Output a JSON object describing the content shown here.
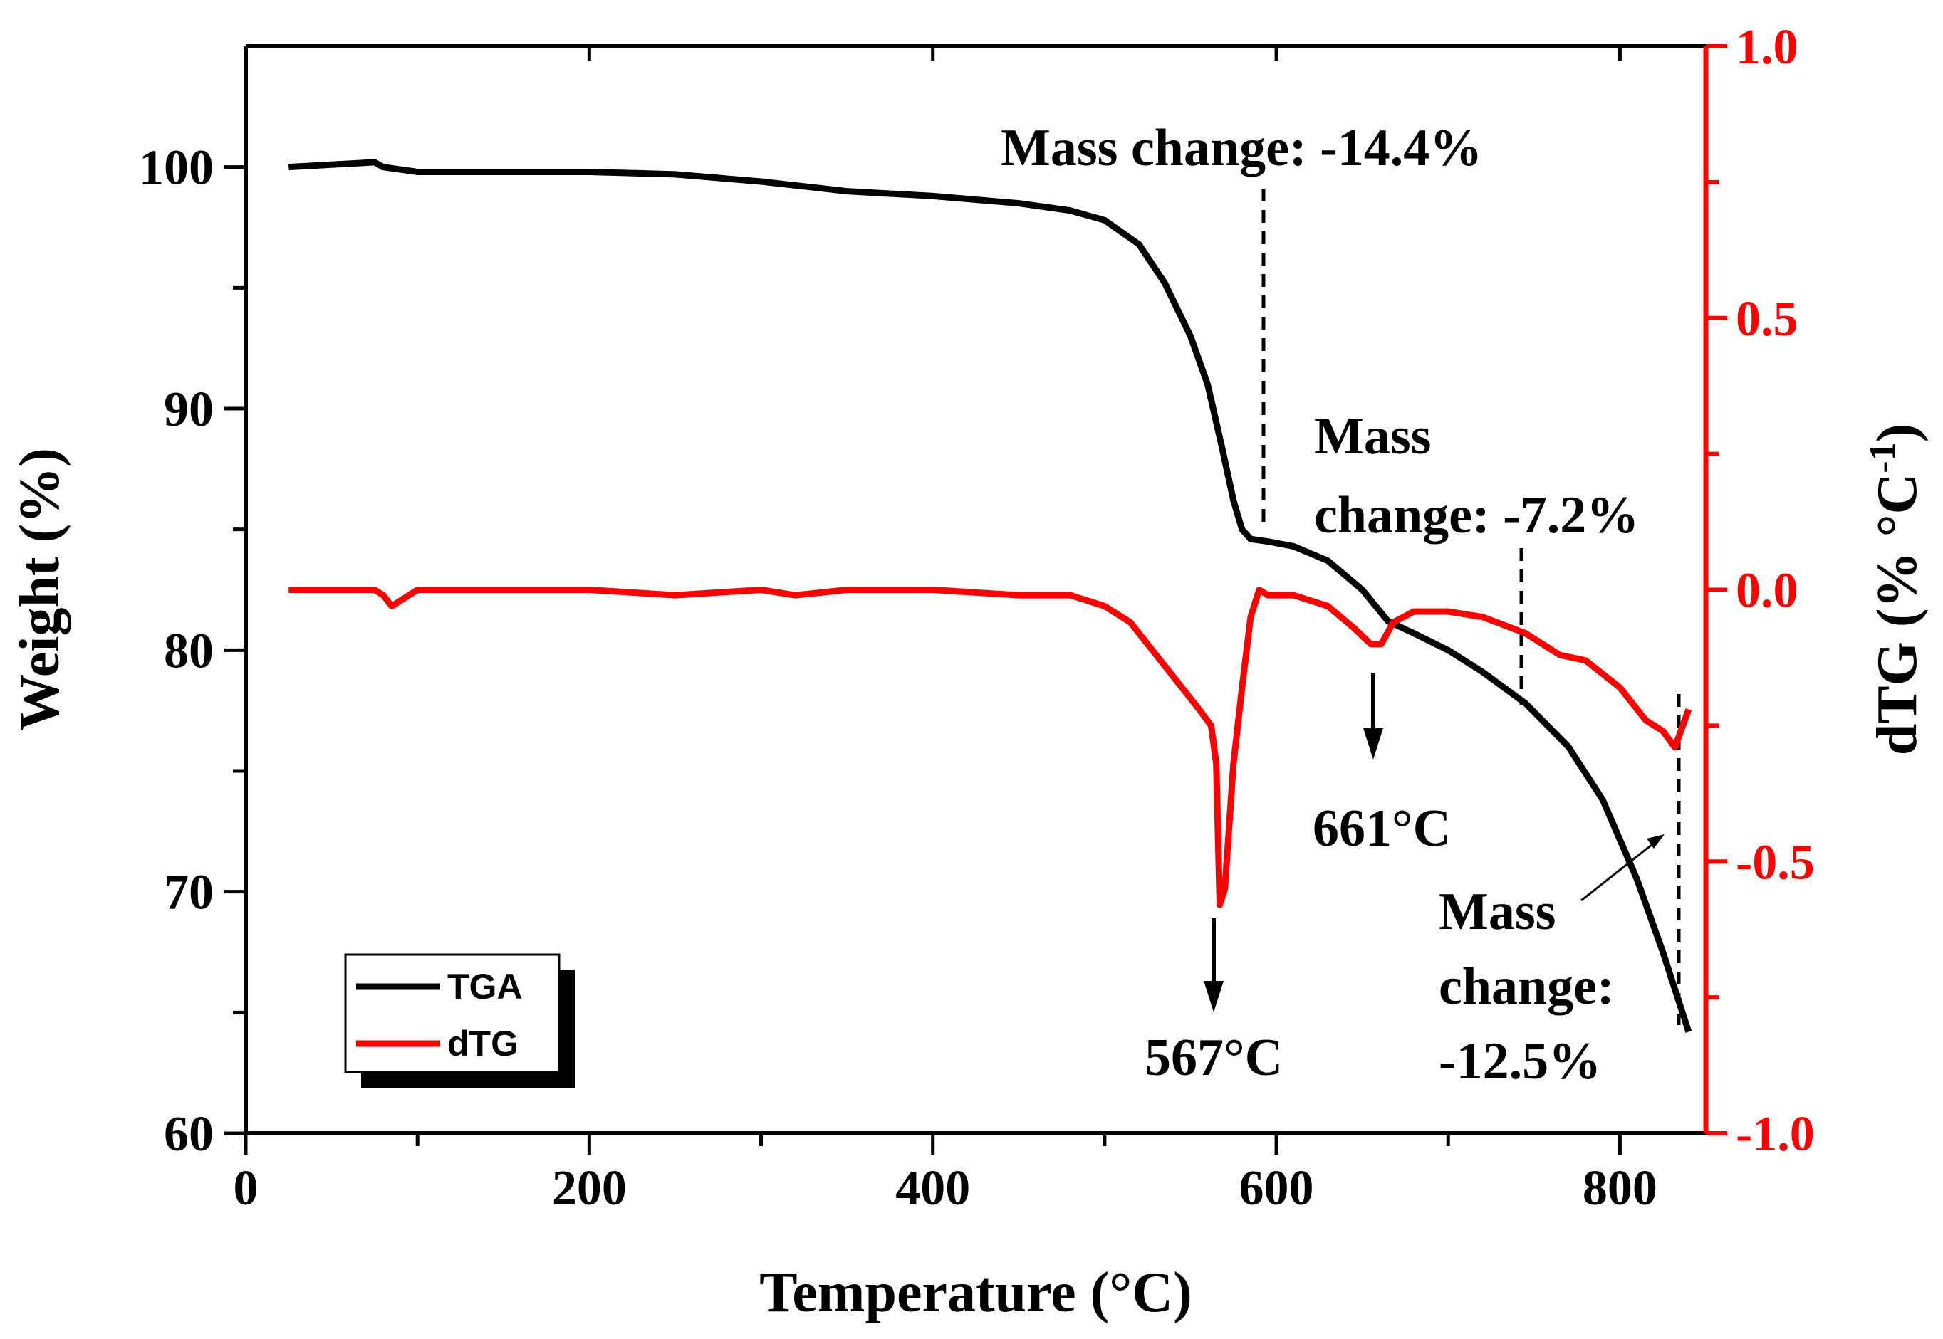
{
  "chart_data": {
    "type": "line",
    "xlabel": "Temperature (°C)",
    "ylabel_left": "Weight (%)",
    "ylabel_right": "dTG (% °C",
    "ylabel_right_sup": "-1",
    "ylabel_right_close": ")",
    "xlim": [
      0,
      850
    ],
    "ylim_left": [
      60,
      105
    ],
    "ylim_right": [
      -1.0,
      1.0
    ],
    "x_ticks": [
      0,
      200,
      400,
      600,
      800
    ],
    "x_tick_labels": [
      "0",
      "200",
      "400",
      "600",
      "800"
    ],
    "y_left_ticks": [
      60,
      70,
      80,
      90,
      100
    ],
    "y_left_tick_labels": [
      "60",
      "70",
      "80",
      "90",
      "100"
    ],
    "y_right_ticks": [
      -1.0,
      -0.5,
      0.0,
      0.5,
      1.0
    ],
    "y_right_tick_labels": [
      "-1.0",
      "-0.5",
      "0.0",
      "0.5",
      "1.0"
    ],
    "colors": {
      "tga": "#000000",
      "dtg": "#ff0000",
      "right_axis": "#ff0000"
    },
    "series": [
      {
        "name": "TGA",
        "axis": "left",
        "x": [
          25,
          50,
          75,
          80,
          100,
          150,
          200,
          250,
          300,
          350,
          400,
          450,
          480,
          500,
          520,
          535,
          550,
          560,
          568,
          575,
          580,
          585,
          595,
          610,
          630,
          650,
          665,
          680,
          700,
          720,
          745,
          770,
          790,
          810,
          825,
          840
        ],
        "y": [
          100.0,
          100.1,
          100.2,
          100.0,
          99.8,
          99.8,
          99.8,
          99.7,
          99.4,
          99.0,
          98.8,
          98.5,
          98.2,
          97.8,
          96.8,
          95.2,
          93.0,
          91.0,
          88.5,
          86.2,
          85.0,
          84.6,
          84.5,
          84.3,
          83.7,
          82.5,
          81.2,
          80.7,
          80.0,
          79.1,
          77.8,
          76.0,
          73.8,
          70.5,
          67.5,
          64.2
        ]
      },
      {
        "name": "dTG",
        "axis": "right",
        "x": [
          25,
          60,
          75,
          80,
          85,
          90,
          100,
          150,
          200,
          250,
          300,
          320,
          350,
          400,
          450,
          480,
          500,
          515,
          530,
          545,
          555,
          562,
          565,
          567,
          570,
          575,
          580,
          585,
          590,
          595,
          610,
          630,
          645,
          655,
          661,
          668,
          680,
          700,
          720,
          745,
          765,
          780,
          800,
          815,
          825,
          832,
          840
        ],
        "y": [
          0.0,
          0.0,
          0.0,
          -0.01,
          -0.03,
          -0.02,
          0.0,
          0.0,
          0.0,
          -0.01,
          0.0,
          -0.01,
          0.0,
          0.0,
          -0.01,
          -0.01,
          -0.03,
          -0.06,
          -0.12,
          -0.18,
          -0.22,
          -0.25,
          -0.32,
          -0.58,
          -0.55,
          -0.32,
          -0.18,
          -0.05,
          0.0,
          -0.01,
          -0.01,
          -0.03,
          -0.07,
          -0.1,
          -0.1,
          -0.06,
          -0.04,
          -0.04,
          -0.05,
          -0.08,
          -0.12,
          -0.13,
          -0.18,
          -0.24,
          -0.26,
          -0.29,
          -0.22
        ]
      }
    ],
    "legend": {
      "position": "bottom-left",
      "entries": [
        {
          "label": "TGA",
          "color": "#000000"
        },
        {
          "label": "dTG",
          "color": "#ff0000"
        }
      ]
    },
    "annotations": {
      "mass1": {
        "text": "Mass change: -14.4%",
        "x": 598
      },
      "mass2": {
        "lines": [
          "Mass",
          "change: -7.2%"
        ],
        "x": 745
      },
      "mass3": {
        "lines": [
          "Mass",
          "change:",
          "-12.5%"
        ],
        "x": 838
      },
      "peak1": {
        "text": "567°C",
        "x": 567
      },
      "peak2": {
        "text": "661°C",
        "x": 661
      }
    }
  }
}
